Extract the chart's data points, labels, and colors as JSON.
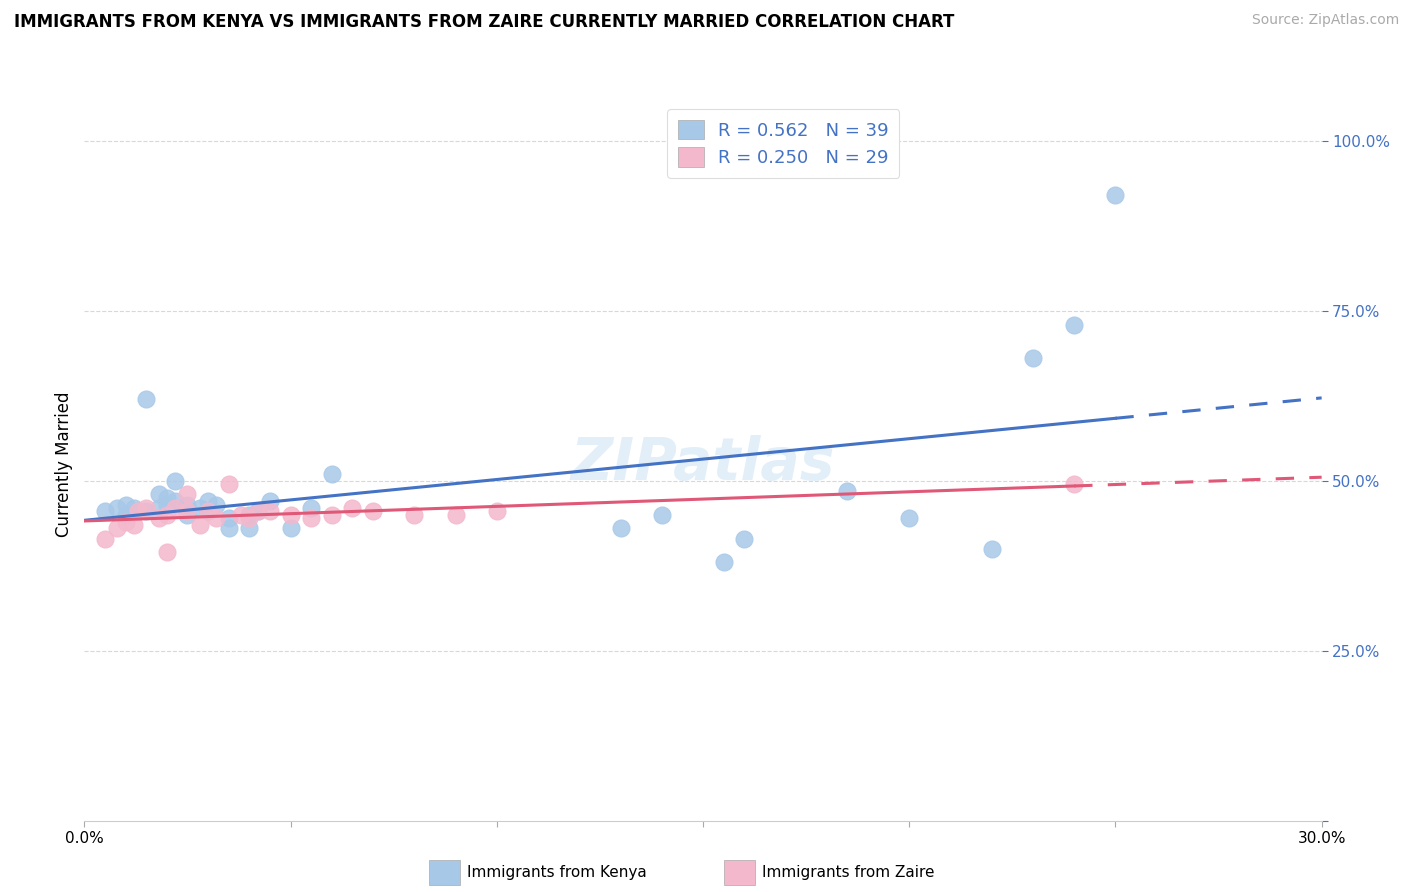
{
  "title": "IMMIGRANTS FROM KENYA VS IMMIGRANTS FROM ZAIRE CURRENTLY MARRIED CORRELATION CHART",
  "source": "Source: ZipAtlas.com",
  "ylabel": "Currently Married",
  "xlim": [
    0.0,
    0.3
  ],
  "ylim": [
    0.0,
    1.05
  ],
  "watermark": "ZIPatlas",
  "kenya_color": "#a8c8e8",
  "zaire_color": "#f4b8cc",
  "kenya_line_color": "#4472c4",
  "zaire_line_color": "#e05878",
  "kenya_R": 0.562,
  "kenya_N": 39,
  "zaire_R": 0.25,
  "zaire_N": 29,
  "kenya_scatter_x": [
    0.005,
    0.008,
    0.01,
    0.01,
    0.012,
    0.013,
    0.015,
    0.015,
    0.018,
    0.018,
    0.02,
    0.02,
    0.022,
    0.022,
    0.025,
    0.025,
    0.028,
    0.03,
    0.03,
    0.032,
    0.035,
    0.035,
    0.04,
    0.04,
    0.042,
    0.045,
    0.05,
    0.055,
    0.06,
    0.13,
    0.14,
    0.155,
    0.16,
    0.185,
    0.2,
    0.22,
    0.23,
    0.24,
    0.25
  ],
  "kenya_scatter_y": [
    0.455,
    0.46,
    0.45,
    0.465,
    0.46,
    0.455,
    0.62,
    0.455,
    0.46,
    0.48,
    0.475,
    0.465,
    0.47,
    0.5,
    0.45,
    0.465,
    0.46,
    0.455,
    0.47,
    0.465,
    0.43,
    0.445,
    0.45,
    0.43,
    0.455,
    0.47,
    0.43,
    0.46,
    0.51,
    0.43,
    0.45,
    0.38,
    0.415,
    0.485,
    0.445,
    0.4,
    0.68,
    0.73,
    0.92
  ],
  "zaire_scatter_x": [
    0.005,
    0.008,
    0.01,
    0.012,
    0.013,
    0.015,
    0.018,
    0.02,
    0.02,
    0.022,
    0.025,
    0.025,
    0.028,
    0.03,
    0.032,
    0.035,
    0.038,
    0.04,
    0.042,
    0.045,
    0.05,
    0.055,
    0.06,
    0.065,
    0.07,
    0.08,
    0.09,
    0.1,
    0.24
  ],
  "zaire_scatter_y": [
    0.415,
    0.43,
    0.44,
    0.435,
    0.455,
    0.46,
    0.445,
    0.395,
    0.45,
    0.46,
    0.455,
    0.48,
    0.435,
    0.455,
    0.445,
    0.495,
    0.45,
    0.445,
    0.455,
    0.455,
    0.45,
    0.445,
    0.45,
    0.46,
    0.455,
    0.45,
    0.45,
    0.455,
    0.495
  ],
  "ytick_positions": [
    0.0,
    0.25,
    0.5,
    0.75,
    1.0
  ],
  "ytick_labels": [
    "",
    "25.0%",
    "50.0%",
    "75.0%",
    "100.0%"
  ],
  "grid_color": "#d8d8d8",
  "title_fontsize": 12,
  "source_fontsize": 10,
  "tick_fontsize": 11,
  "legend_fontsize": 13
}
